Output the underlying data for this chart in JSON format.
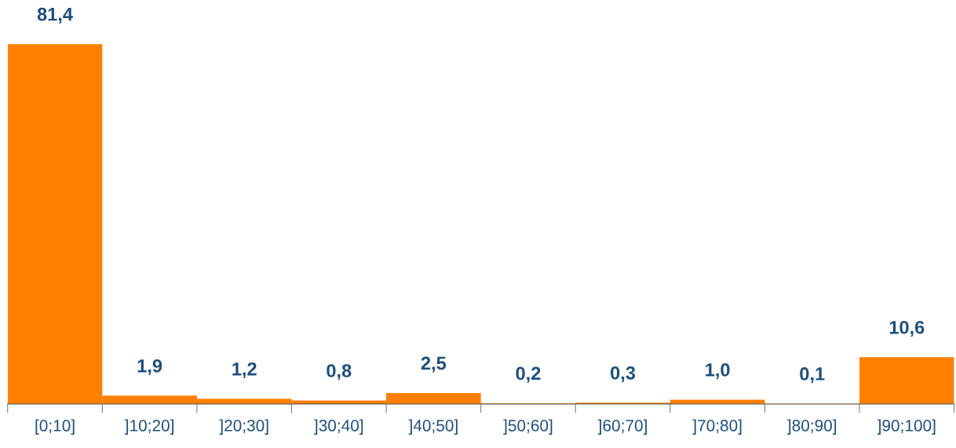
{
  "chart_data": {
    "type": "bar",
    "categories": [
      "[0;10]",
      "]10;20]",
      "]20;30]",
      "]30;40]",
      "]40;50]",
      "]50;60]",
      "]60;70]",
      "]70;80]",
      "]80;90]",
      "]90;100]"
    ],
    "values": [
      81.4,
      1.9,
      1.2,
      0.8,
      2.5,
      0.2,
      0.3,
      1.0,
      0.1,
      10.6
    ],
    "value_labels": [
      "81,4",
      "1,9",
      "1,2",
      "0,8",
      "2,5",
      "0,2",
      "0,3",
      "1,0",
      "0,1",
      "10,6"
    ],
    "color": "#ff7f00",
    "grid": false,
    "legend": false
  }
}
